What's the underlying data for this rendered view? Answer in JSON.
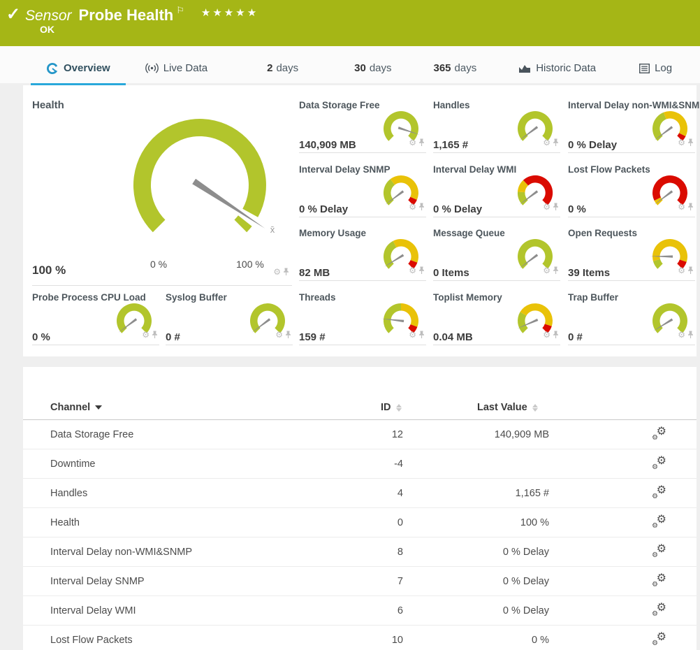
{
  "header": {
    "check_icon": "✓",
    "type_label": "Sensor",
    "title": "Probe Health",
    "flag_icon": "⚐",
    "stars": "★★★★★",
    "status": "OK"
  },
  "tabs": [
    {
      "label": "Overview",
      "icon": "gauge",
      "active": true
    },
    {
      "label": "Live Data",
      "icon": "broadcast",
      "active": false
    },
    {
      "number": "2",
      "unit": "days",
      "active": false
    },
    {
      "number": "30",
      "unit": "days",
      "active": false
    },
    {
      "number": "365",
      "unit": "days",
      "active": false
    },
    {
      "label": "Historic Data",
      "icon": "chart",
      "active": false
    },
    {
      "label": "Log",
      "icon": "log",
      "active": false
    }
  ],
  "colors": {
    "brand_green": "#a5b616",
    "gauge_green": "#b2c52c",
    "gauge_yellow": "#e9c208",
    "gauge_red": "#da0b00",
    "accent_blue": "#29a8da",
    "needle_gray": "#8d8d8d"
  },
  "health_gauge": {
    "title": "Health",
    "value": "100 %",
    "min_label": "0 %",
    "max_label": "100 %",
    "mean_marker": "x̄",
    "needle": 0.9575,
    "segments": [
      [
        0,
        0.94,
        "g"
      ],
      [
        0.975,
        1,
        "g"
      ]
    ]
  },
  "gauges": [
    {
      "label": "Data Storage Free",
      "value": "140,909 MB",
      "needle": 0.9,
      "segments": [
        [
          0,
          1,
          "g"
        ]
      ]
    },
    {
      "label": "Handles",
      "value": "1,165 #",
      "needle": 0.03,
      "segments": [
        [
          0,
          1,
          "g"
        ]
      ]
    },
    {
      "label": "Interval Delay non-WMI&SNMP",
      "value": "0 % Delay",
      "needle": 0.03,
      "segments": [
        [
          0,
          0.42,
          "g"
        ],
        [
          0.42,
          0.93,
          "y"
        ],
        [
          0.93,
          1,
          "r"
        ]
      ]
    },
    {
      "label": "Interval Delay SNMP",
      "value": "0 % Delay",
      "needle": 0.03,
      "segments": [
        [
          0,
          0.36,
          "g"
        ],
        [
          0.36,
          0.92,
          "y"
        ],
        [
          0.92,
          1,
          "r"
        ]
      ]
    },
    {
      "label": "Interval Delay WMI",
      "value": "0 % Delay",
      "needle": 0.03,
      "segments": [
        [
          0,
          0.18,
          "g"
        ],
        [
          0.18,
          0.34,
          "y"
        ],
        [
          0.34,
          1,
          "r"
        ]
      ]
    },
    {
      "label": "Lost Flow Packets",
      "value": "0 %",
      "needle": 0.03,
      "segments": [
        [
          0,
          0.07,
          "y"
        ],
        [
          0.07,
          1,
          "r"
        ]
      ]
    },
    {
      "label": "Memory Usage",
      "value": "82 MB",
      "needle": 0.05,
      "segments": [
        [
          0,
          0.4,
          "g"
        ],
        [
          0.4,
          0.91,
          "y"
        ],
        [
          0.91,
          1,
          "r"
        ]
      ]
    },
    {
      "label": "Message Queue",
      "value": "0 Items",
      "needle": 0.03,
      "segments": [
        [
          0,
          1,
          "g"
        ]
      ]
    },
    {
      "label": "Open Requests",
      "value": "39 Items",
      "needle": 0.17,
      "segments": [
        [
          0,
          0.11,
          "g"
        ],
        [
          0.11,
          0.9,
          "y"
        ],
        [
          0.9,
          1,
          "r"
        ]
      ]
    },
    {
      "label": "Probe Process CPU Load",
      "value": "0 %",
      "needle": 0.03,
      "segments": [
        [
          0,
          1,
          "g"
        ]
      ]
    },
    {
      "label": "Syslog Buffer",
      "value": "0 #",
      "needle": 0.03,
      "segments": [
        [
          0,
          1,
          "g"
        ]
      ]
    },
    {
      "label": "Threads",
      "value": "159 #",
      "needle": 0.19,
      "segments": [
        [
          0,
          0.5,
          "g"
        ],
        [
          0.5,
          0.91,
          "y"
        ],
        [
          0.91,
          1,
          "r"
        ]
      ]
    },
    {
      "label": "Toplist Memory",
      "value": "0.04 MB",
      "needle": 0.08,
      "segments": [
        [
          0,
          0.28,
          "g"
        ],
        [
          0.28,
          0.9,
          "y"
        ],
        [
          0.9,
          1,
          "r"
        ]
      ]
    },
    {
      "label": "Trap Buffer",
      "value": "0 #",
      "needle": 0.05,
      "segments": [
        [
          0,
          1,
          "g"
        ]
      ]
    }
  ],
  "channel_table": {
    "columns": [
      "Channel",
      "ID",
      "Last Value"
    ],
    "sorted_by": "Channel",
    "rows": [
      {
        "channel": "Data Storage Free",
        "id": "12",
        "last_value": "140,909 MB"
      },
      {
        "channel": "Downtime",
        "id": "-4",
        "last_value": ""
      },
      {
        "channel": "Handles",
        "id": "4",
        "last_value": "1,165 #"
      },
      {
        "channel": "Health",
        "id": "0",
        "last_value": "100 %"
      },
      {
        "channel": "Interval Delay non-WMI&SNMP",
        "id": "8",
        "last_value": "0 % Delay"
      },
      {
        "channel": "Interval Delay SNMP",
        "id": "7",
        "last_value": "0 % Delay"
      },
      {
        "channel": "Interval Delay WMI",
        "id": "6",
        "last_value": "0 % Delay"
      },
      {
        "channel": "Lost Flow Packets",
        "id": "10",
        "last_value": "0 %"
      }
    ]
  }
}
